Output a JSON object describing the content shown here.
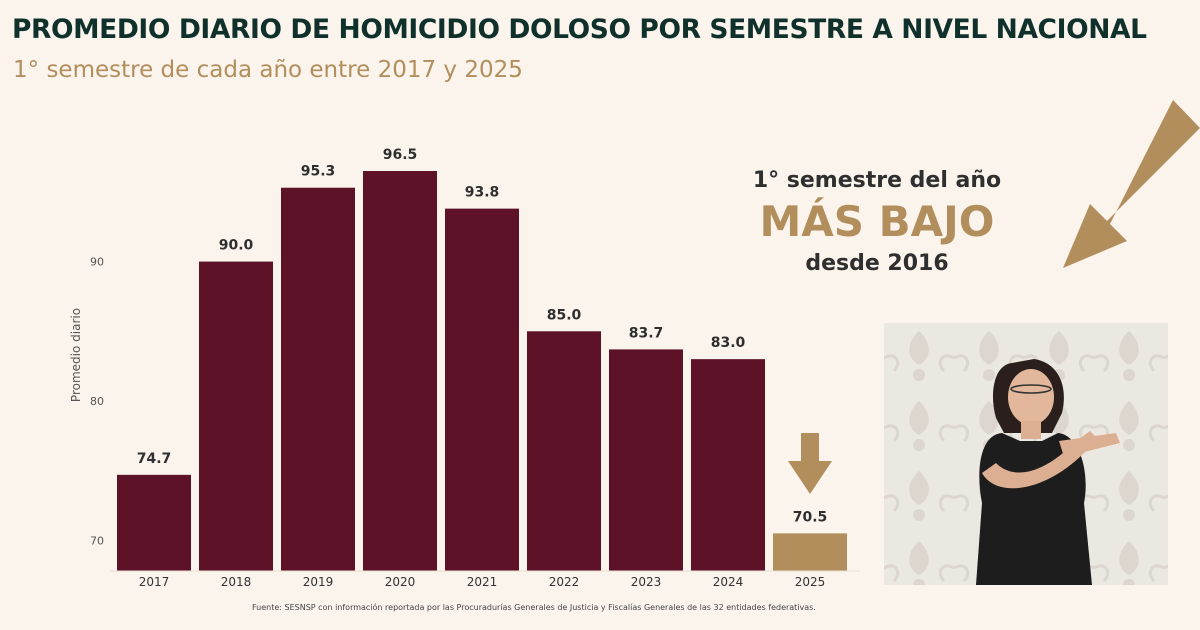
{
  "header": {
    "title": "PROMEDIO DIARIO DE HOMICIDIO DOLOSO POR SEMESTRE A NIVEL NACIONAL",
    "subtitle": "1° semestre de cada año entre 2017 y 2025"
  },
  "callout": {
    "line1": "1° semestre del año",
    "line2": "MÁS BAJO",
    "line3": "desde 2016"
  },
  "source": "Fuente: SESNSP con información reportada por las Procuradurías Generales de Justicia y Fiscalías Generales de las 32 entidades federativas.",
  "colors": {
    "bar": "#5d1228",
    "highlight": "#b38e5d",
    "title": "#10312b",
    "background": "#faf4ec"
  },
  "icons": [
    "down-arrow-icon",
    "diagonal-arrow-icon"
  ],
  "chart_data": {
    "type": "bar",
    "title": "PROMEDIO DIARIO DE HOMICIDIO DOLOSO POR SEMESTRE A NIVEL NACIONAL",
    "ylabel": "Promedio diario",
    "xlabel": "",
    "categories": [
      "2017",
      "2018",
      "2019",
      "2020",
      "2021",
      "2022",
      "2023",
      "2024",
      "2025"
    ],
    "values": [
      74.7,
      90.0,
      95.3,
      96.5,
      93.8,
      85.0,
      83.7,
      83.0,
      70.5
    ],
    "value_labels": [
      "74.7",
      "90.0",
      "95.3",
      "96.5",
      "93.8",
      "85.0",
      "83.7",
      "83.0",
      "70.5"
    ],
    "highlight_category": "2025",
    "yticks": [
      "70",
      "80",
      "90"
    ],
    "ylim": [
      67.8,
      96.5
    ],
    "grid": false,
    "legend": "none"
  }
}
